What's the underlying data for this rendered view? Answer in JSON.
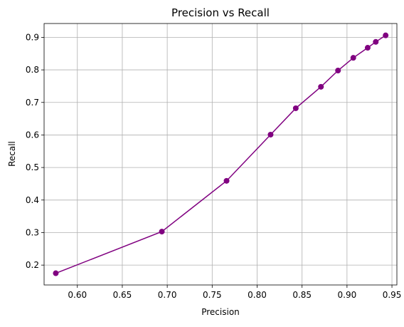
{
  "chart_data": {
    "type": "line",
    "title": "Precision vs Recall",
    "xlabel": "Precision",
    "ylabel": "Recall",
    "xlim": [
      0.563,
      0.9555
    ],
    "ylim": [
      0.139,
      0.9425
    ],
    "x_ticks": [
      0.6,
      0.65,
      0.7,
      0.75,
      0.8,
      0.85,
      0.9,
      0.95
    ],
    "x_tick_labels": [
      "0.60",
      "0.65",
      "0.70",
      "0.75",
      "0.80",
      "0.85",
      "0.90",
      "0.95"
    ],
    "y_ticks": [
      0.2,
      0.3,
      0.4,
      0.5,
      0.6,
      0.7,
      0.8,
      0.9
    ],
    "y_tick_labels": [
      "0.2",
      "0.3",
      "0.4",
      "0.5",
      "0.6",
      "0.7",
      "0.8",
      "0.9"
    ],
    "grid": true,
    "color": "#800080",
    "marker": "circle",
    "series": [
      {
        "points": [
          {
            "x": 0.576,
            "y": 0.175
          },
          {
            "x": 0.694,
            "y": 0.303
          },
          {
            "x": 0.766,
            "y": 0.459
          },
          {
            "x": 0.815,
            "y": 0.601
          },
          {
            "x": 0.843,
            "y": 0.682
          },
          {
            "x": 0.871,
            "y": 0.748
          },
          {
            "x": 0.89,
            "y": 0.798
          },
          {
            "x": 0.907,
            "y": 0.837
          },
          {
            "x": 0.923,
            "y": 0.868
          },
          {
            "x": 0.932,
            "y": 0.886
          },
          {
            "x": 0.943,
            "y": 0.906
          }
        ]
      }
    ]
  }
}
